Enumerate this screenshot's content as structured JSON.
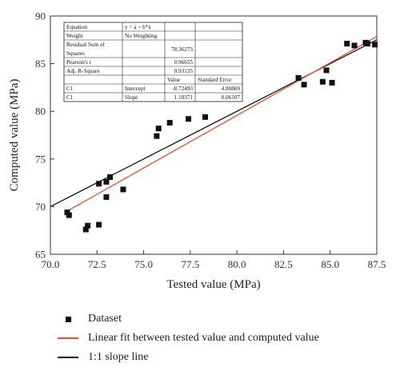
{
  "chart_data": {
    "type": "scatter",
    "xlabel": "Tested value (MPa)",
    "ylabel": "Computed value (MPa)",
    "xlim": [
      70.0,
      87.5
    ],
    "ylim": [
      65,
      90
    ],
    "x_ticks": [
      "70.0",
      "72.5",
      "75.0",
      "77.5",
      "80.0",
      "82.5",
      "85.0",
      "87.5"
    ],
    "y_ticks": [
      "65",
      "70",
      "75",
      "80",
      "85",
      "90"
    ],
    "grid": false,
    "series": [
      {
        "name": "Dataset",
        "marker": "square",
        "color": "#111111",
        "points": [
          [
            70.9,
            69.4
          ],
          [
            71.0,
            69.1
          ],
          [
            71.9,
            67.6
          ],
          [
            72.0,
            68.0
          ],
          [
            72.6,
            68.1
          ],
          [
            72.6,
            72.4
          ],
          [
            73.0,
            72.6
          ],
          [
            73.0,
            71.0
          ],
          [
            73.2,
            73.1
          ],
          [
            73.9,
            71.8
          ],
          [
            75.7,
            77.4
          ],
          [
            75.8,
            78.2
          ],
          [
            76.4,
            78.8
          ],
          [
            77.4,
            79.2
          ],
          [
            78.3,
            79.4
          ],
          [
            83.3,
            83.5
          ],
          [
            83.6,
            82.8
          ],
          [
            84.6,
            83.1
          ],
          [
            84.8,
            84.3
          ],
          [
            85.1,
            83.0
          ],
          [
            85.9,
            87.1
          ],
          [
            86.3,
            86.9
          ],
          [
            86.9,
            87.2
          ],
          [
            87.0,
            87.1
          ],
          [
            87.4,
            87.0
          ]
        ]
      },
      {
        "name": "Linear fit between tested value and computed value",
        "type": "line",
        "color": "#e0502a",
        "intercept": -8.72493,
        "slope": 1.10371
      },
      {
        "name": "1:1 slope line",
        "type": "line",
        "color": "#111111",
        "intercept": 0,
        "slope": 1
      }
    ],
    "legend_position": "bottom",
    "fit_table": {
      "rows": [
        [
          "Equation",
          "y = a + b*x",
          "",
          ""
        ],
        [
          "Weight",
          "No Weighting",
          "",
          ""
        ],
        [
          "Residual Sum of Squares",
          "",
          "78.36273",
          ""
        ],
        [
          "Pearson's r",
          "",
          "0.96655",
          ""
        ],
        [
          "Adj. R-Square",
          "",
          "0.93135",
          ""
        ],
        [
          "",
          "",
          "Value",
          "Standard Error"
        ],
        [
          "C1",
          "Intercept",
          "-8.72493",
          "4.80869"
        ],
        [
          "C1",
          "Slope",
          "1.10371",
          "0.06107"
        ]
      ]
    }
  }
}
